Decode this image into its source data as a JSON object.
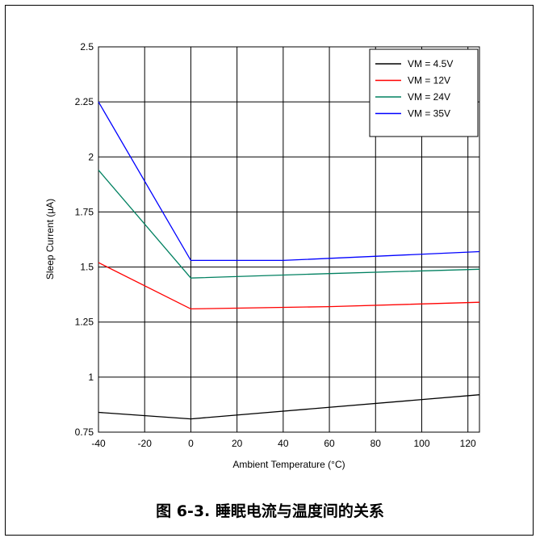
{
  "caption": "图 6-3. 睡眠电流与温度间的关系",
  "chart_data": {
    "type": "line",
    "xlabel": "Ambient Temperature (°C)",
    "ylabel": "Sleep Current (µA)",
    "xlim": [
      -40,
      125
    ],
    "ylim": [
      0.75,
      2.5
    ],
    "xticks": [
      -40,
      -20,
      0,
      20,
      40,
      60,
      80,
      100,
      120
    ],
    "yticks": [
      "0.75",
      "1",
      "1.25",
      "1.5",
      "1.75",
      "2",
      "2.25",
      "2.5"
    ],
    "grid": true,
    "legend_position": "top-right",
    "series": [
      {
        "name": "VM = 4.5V",
        "color": "#000000",
        "x": [
          -40,
          0,
          125
        ],
        "y": [
          0.84,
          0.81,
          0.92
        ]
      },
      {
        "name": "VM = 12V",
        "color": "#ff0000",
        "x": [
          -40,
          0,
          60,
          125
        ],
        "y": [
          1.52,
          1.31,
          1.32,
          1.34
        ]
      },
      {
        "name": "VM = 24V",
        "color": "#008060",
        "x": [
          -40,
          0,
          60,
          125
        ],
        "y": [
          1.94,
          1.45,
          1.47,
          1.49
        ]
      },
      {
        "name": "VM = 35V",
        "color": "#0000ff",
        "x": [
          -40,
          0,
          40,
          125
        ],
        "y": [
          2.25,
          1.53,
          1.53,
          1.57
        ]
      }
    ]
  }
}
